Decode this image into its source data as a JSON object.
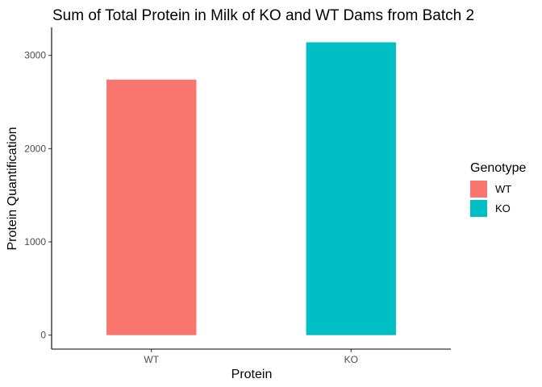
{
  "chart_data": {
    "type": "bar",
    "title": "Sum of Total Protein in Milk of KO and WT Dams from Batch 2",
    "xlabel": "Protein",
    "ylabel": "Protein Quantification",
    "categories": [
      "WT",
      "KO"
    ],
    "values": [
      2740,
      3140
    ],
    "colors": [
      "#F8766D",
      "#00BFC4"
    ],
    "ylim": [
      -150,
      3300
    ],
    "yticks": [
      0,
      1000,
      2000,
      3000
    ],
    "grid": false,
    "legend": {
      "title": "Genotype",
      "placement": "right",
      "entries": [
        "WT",
        "KO"
      ]
    }
  }
}
